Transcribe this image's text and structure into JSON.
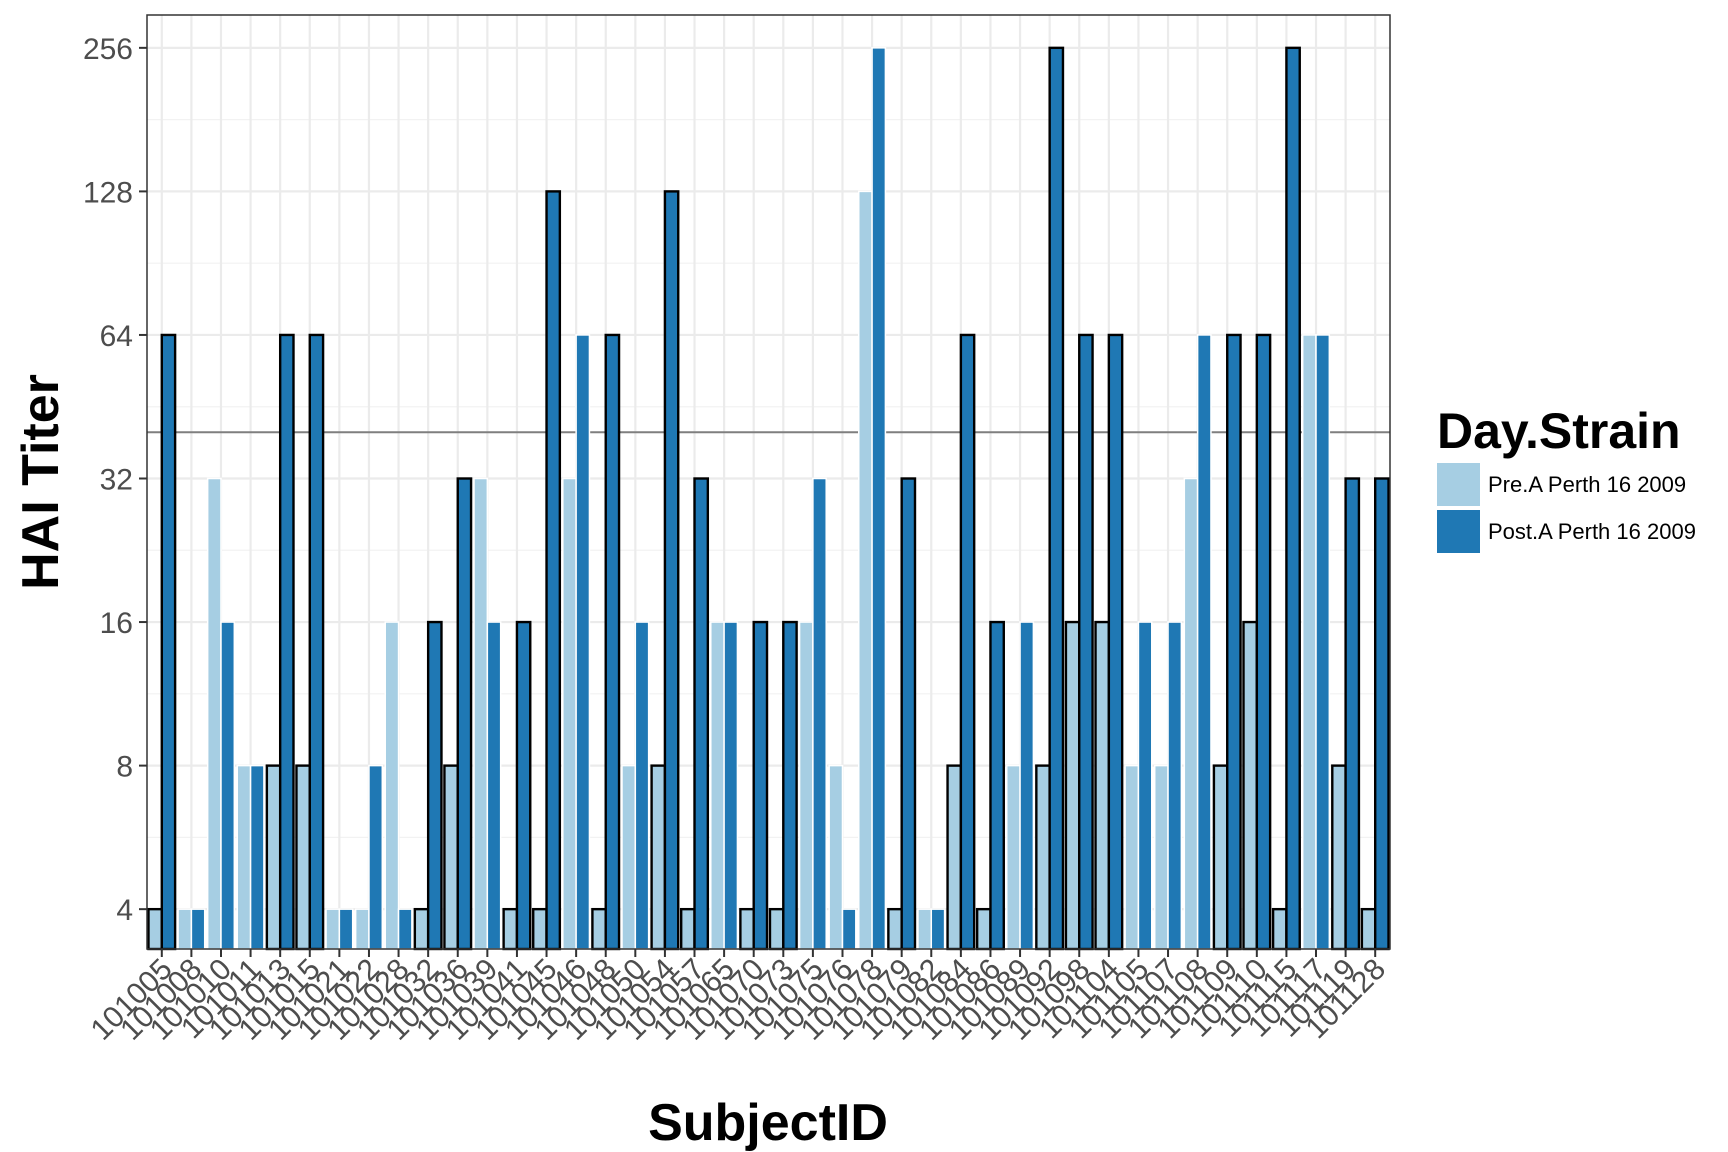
{
  "chart_data": {
    "type": "bar",
    "title": "",
    "xlabel": "SubjectID",
    "ylabel": "HAI Titer",
    "y_scale": "log2",
    "ylim": [
      3.3,
      300
    ],
    "yticks": [
      4,
      8,
      16,
      32,
      64,
      128,
      256
    ],
    "reference_line": 40,
    "grid": true,
    "legend": {
      "title": "Day.Strain",
      "placement": "right"
    },
    "categories": [
      "101005",
      "101008",
      "101010",
      "101011",
      "101013",
      "101015",
      "101021",
      "101022",
      "101028",
      "101032",
      "101036",
      "101039",
      "101041",
      "101045",
      "101046",
      "101048",
      "101050",
      "101054",
      "101057",
      "101065",
      "101070",
      "101073",
      "101075",
      "101076",
      "101078",
      "101079",
      "101082",
      "101084",
      "101086",
      "101089",
      "101092",
      "101098",
      "101104",
      "101105",
      "101107",
      "101108",
      "101109",
      "101110",
      "101115",
      "101117",
      "101119",
      "101128"
    ],
    "series": [
      {
        "name": "Pre.A Perth 16 2009",
        "color": "#a6cee3",
        "values": [
          4,
          4,
          32,
          8,
          8,
          8,
          4,
          4,
          16,
          4,
          8,
          32,
          4,
          4,
          32,
          4,
          8,
          8,
          4,
          16,
          4,
          4,
          16,
          8,
          128,
          4,
          4,
          8,
          4,
          8,
          8,
          16,
          16,
          8,
          8,
          32,
          8,
          16,
          4,
          64,
          8,
          4
        ],
        "outlined": [
          true,
          false,
          false,
          false,
          true,
          true,
          false,
          false,
          false,
          true,
          true,
          false,
          true,
          true,
          false,
          true,
          false,
          true,
          true,
          false,
          true,
          true,
          false,
          false,
          false,
          true,
          false,
          true,
          true,
          false,
          true,
          true,
          true,
          false,
          false,
          false,
          true,
          true,
          true,
          false,
          true,
          true
        ]
      },
      {
        "name": "Post.A Perth 16 2009",
        "color": "#1f78b4",
        "values": [
          64,
          4,
          16,
          8,
          64,
          64,
          4,
          8,
          4,
          16,
          32,
          16,
          16,
          128,
          64,
          64,
          16,
          128,
          32,
          16,
          16,
          16,
          32,
          4,
          256,
          32,
          4,
          64,
          16,
          16,
          256,
          64,
          64,
          16,
          16,
          64,
          64,
          64,
          256,
          64,
          32,
          32
        ],
        "outlined": [
          true,
          false,
          false,
          false,
          true,
          true,
          false,
          false,
          false,
          true,
          true,
          false,
          true,
          true,
          false,
          true,
          false,
          true,
          true,
          false,
          true,
          true,
          false,
          false,
          false,
          true,
          false,
          true,
          true,
          false,
          true,
          true,
          true,
          false,
          false,
          false,
          true,
          true,
          true,
          false,
          true,
          true
        ]
      }
    ]
  }
}
